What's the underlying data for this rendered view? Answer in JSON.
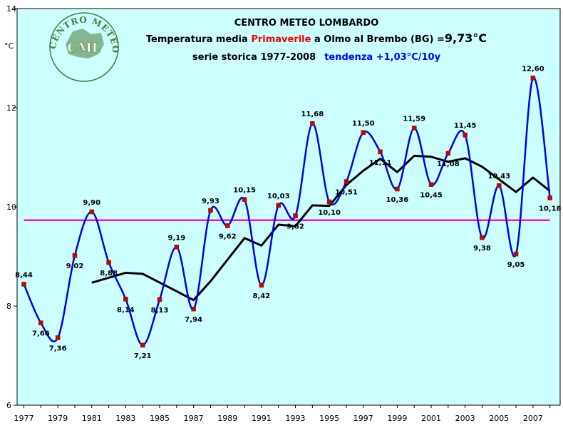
{
  "colors": {
    "plot_background": "#ccffff",
    "series_line": "#0000ee",
    "marker_fill": "#cc0000",
    "moving_average": "#000000",
    "mean_line": "#ff00ff",
    "title_accent": "#ff0000",
    "trend_text": "#0000ff",
    "logo_green": "#4d7a35"
  },
  "header": {
    "line1": "CENTRO METEO LOMBARDO",
    "line2_prefix": "Temperatura media ",
    "line2_highlight": "Primaverile",
    "line2_middle": " a Olmo al Brembo (BG) =",
    "line2_value": "9,73°C",
    "line3_prefix": "serie storica 1977-2008",
    "line3_trend": "tendenza +1,03°C/10y"
  },
  "logo": {
    "ring_text": "CENTRO METEO LOMBARDO",
    "center_text": "CML"
  },
  "chart_data": {
    "type": "line",
    "ylabel": "°C",
    "ylim": [
      6,
      14
    ],
    "xlim": [
      1976.6,
      2008.6
    ],
    "y_ticks": [
      6,
      8,
      10,
      12,
      14
    ],
    "x_ticks": [
      1977,
      1979,
      1981,
      1983,
      1985,
      1987,
      1989,
      1991,
      1993,
      1995,
      1997,
      1999,
      2001,
      2003,
      2005,
      2007
    ],
    "x": [
      1977,
      1978,
      1979,
      1980,
      1981,
      1982,
      1983,
      1984,
      1985,
      1986,
      1987,
      1988,
      1989,
      1990,
      1991,
      1992,
      1993,
      1994,
      1995,
      1996,
      1997,
      1998,
      1999,
      2000,
      2001,
      2002,
      2003,
      2004,
      2005,
      2006,
      2007,
      2008
    ],
    "series": [
      {
        "values": [
          8.44,
          7.66,
          7.36,
          9.02,
          9.9,
          8.88,
          8.14,
          7.21,
          8.13,
          9.19,
          7.94,
          9.93,
          9.62,
          10.15,
          8.42,
          10.03,
          9.82,
          11.68,
          10.1,
          10.51,
          11.5,
          11.11,
          10.36,
          11.59,
          10.45,
          11.08,
          11.45,
          9.38,
          10.43,
          9.05,
          12.6,
          10.18
        ],
        "labels": [
          "8,44",
          "7,66",
          "7,36",
          "9,02",
          "9,90",
          "8,88",
          "8,14",
          "7,21",
          "8,13",
          "9,19",
          "7,94",
          "9,93",
          "9,62",
          "10,15",
          "8,42",
          "10,03",
          "9,82",
          "11,68",
          "10,10",
          "10,51",
          "11,50",
          "11,11",
          "10,36",
          "11,59",
          "10,45",
          "11,08",
          "11,45",
          "9,38",
          "10,43",
          "9,05",
          "12,60",
          "10,18"
        ]
      },
      {
        "x": [
          1981,
          1983,
          1984,
          1987,
          1988,
          1990,
          1991,
          1992,
          1993,
          1994,
          1995,
          1996,
          1997,
          1998,
          1999,
          2000,
          2001,
          2002,
          2003,
          2004,
          2006,
          2007,
          2008
        ],
        "values": [
          8.47,
          8.67,
          8.65,
          8.12,
          8.5,
          9.37,
          9.22,
          9.64,
          9.61,
          10.03,
          10.02,
          10.44,
          10.73,
          10.97,
          10.7,
          11.03,
          11.01,
          10.91,
          10.98,
          10.81,
          10.3,
          10.59,
          10.32
        ]
      }
    ],
    "reference_line": {
      "value": 9.73,
      "x_range": [
        1977,
        2008
      ]
    },
    "grid": false
  }
}
